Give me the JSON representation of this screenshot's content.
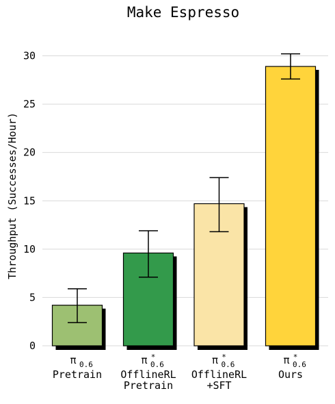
{
  "chart_data": {
    "type": "bar",
    "title": "Make Espresso",
    "xlabel": "",
    "ylabel": "Throughput (Successes/Hour)",
    "ylim": [
      -0.5,
      32
    ],
    "yticks": [
      0,
      5,
      10,
      15,
      20,
      25,
      30
    ],
    "grid": "horizontal",
    "categories": [
      {
        "symbol": "π",
        "sup": "",
        "sub": "0.6",
        "lines": [
          "Pretrain"
        ]
      },
      {
        "symbol": "π",
        "sup": "*",
        "sub": "0.6",
        "lines": [
          "OfflineRL",
          "Pretrain"
        ]
      },
      {
        "symbol": "π",
        "sup": "*",
        "sub": "0.6",
        "lines": [
          "OfflineRL",
          "+SFT"
        ]
      },
      {
        "symbol": "π",
        "sup": "*",
        "sub": "0.6",
        "lines": [
          "Ours"
        ]
      }
    ],
    "values": [
      4.2,
      9.6,
      14.7,
      28.9
    ],
    "error_low": [
      2.4,
      7.1,
      11.8,
      27.6
    ],
    "error_high": [
      5.9,
      11.9,
      17.4,
      30.2
    ],
    "colors": [
      "#9dc072",
      "#339a4b",
      "#fae4a7",
      "#ffd43b"
    ]
  }
}
